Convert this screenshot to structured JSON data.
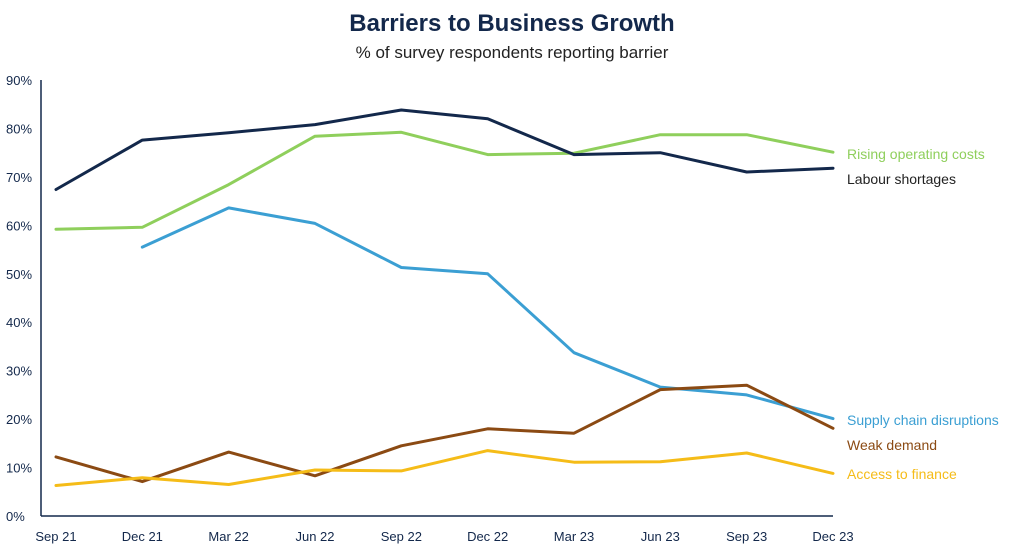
{
  "chart_data": {
    "type": "line",
    "title": "Barriers to Business Growth",
    "subtitle": "% of survey respondents reporting barrier",
    "xlabel": "",
    "ylabel": "",
    "categories": [
      "Sep 21",
      "Dec 21",
      "Mar 22",
      "Jun 22",
      "Sep 22",
      "Dec 22",
      "Mar 23",
      "Jun 23",
      "Sep 23",
      "Dec 23"
    ],
    "ylim": [
      0,
      90
    ],
    "yticks": [
      0,
      10,
      20,
      30,
      40,
      50,
      60,
      70,
      80,
      90
    ],
    "ytick_labels": [
      "0%",
      "10%",
      "20%",
      "30%",
      "40%",
      "50%",
      "60%",
      "70%",
      "80%",
      "90%"
    ],
    "grid": false,
    "legend_placement": "right-end-labels",
    "series": [
      {
        "name": "Rising operating costs",
        "color": "#8fcf5c",
        "values": [
          59.2,
          59.6,
          68.4,
          78.4,
          79.2,
          74.6,
          74.9,
          78.7,
          78.7,
          75.1
        ]
      },
      {
        "name": "Labour shortages",
        "color": "#13284b",
        "values": [
          67.4,
          77.6,
          79.1,
          80.8,
          83.8,
          82.0,
          74.6,
          75.0,
          71.0,
          71.8
        ]
      },
      {
        "name": "Supply chain disruptions",
        "color": "#3b9fd3",
        "values": [
          null,
          55.5,
          63.6,
          60.4,
          51.3,
          50.0,
          33.7,
          26.6,
          25.0,
          20.1
        ]
      },
      {
        "name": "Weak demand",
        "color": "#8b4a13",
        "values": [
          12.2,
          7.1,
          13.2,
          8.3,
          14.5,
          18.0,
          17.1,
          26.1,
          27.0,
          18.1
        ]
      },
      {
        "name": "Access to finance",
        "color": "#f5bc18",
        "values": [
          6.3,
          7.9,
          6.5,
          9.5,
          9.3,
          13.5,
          11.1,
          11.2,
          13.0,
          8.8
        ]
      }
    ]
  }
}
